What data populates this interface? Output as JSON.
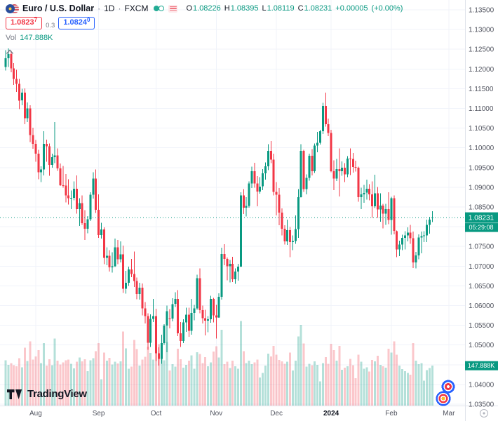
{
  "header": {
    "symbol": "Euro / U.S. Dollar",
    "sep": "·",
    "interval": "1D",
    "exchange": "FXCM",
    "ohlc": {
      "o_l": "O",
      "o": "1.08226",
      "h_l": "H",
      "h": "1.08395",
      "l_l": "L",
      "l": "1.08119",
      "c_l": "C",
      "c": "1.08231",
      "change": "+0.00005",
      "change_pct": "(+0.00%)"
    },
    "quote": {
      "sell": "1.0823",
      "sell_sup": "7",
      "spread": "0.3",
      "buy": "1.0824",
      "buy_sup": "0"
    },
    "vol_label": "Vol",
    "vol_value": "147.888K"
  },
  "price_label": {
    "value": "1.08231",
    "countdown": "05:29:08"
  },
  "volume_label": "147.888K",
  "footer": {
    "brand": "TradingView"
  },
  "colors": {
    "up": "#089981",
    "down": "#f23645",
    "vol_up": "rgba(8,153,129,0.30)",
    "vol_down": "rgba(242,54,69,0.28)",
    "accent_blue": "#2962ff",
    "grid": "#f0f3fa",
    "axis_text": "#50535e",
    "text": "#131722",
    "axis_border": "#e0e3eb"
  },
  "chart_data": {
    "type": "candlestick",
    "title": "Euro / U.S. Dollar · 1D · FXCM",
    "last_price": 1.08231,
    "ylim": [
      1.035,
      1.135
    ],
    "price_step": 0.005,
    "volume_axis_max": 320,
    "legend_position": "top-left",
    "grid": true,
    "x_axis_months": [
      {
        "label": "Aug",
        "index": 11,
        "year": false
      },
      {
        "label": "Sep",
        "index": 34,
        "year": false
      },
      {
        "label": "Oct",
        "index": 55,
        "year": false
      },
      {
        "label": "Nov",
        "index": 77,
        "year": false
      },
      {
        "label": "Dec",
        "index": 99,
        "year": false
      },
      {
        "label": "2024",
        "index": 119,
        "year": true
      },
      {
        "label": "Feb",
        "index": 141,
        "year": false
      },
      {
        "label": "Mar",
        "index": 162,
        "year": false
      }
    ],
    "candles_format": [
      "open",
      "high",
      "low",
      "close",
      "volume_K"
    ],
    "candles": [
      [
        1.1205,
        1.1248,
        1.1196,
        1.1227,
        168
      ],
      [
        1.1227,
        1.1252,
        1.1205,
        1.1238,
        151
      ],
      [
        1.1238,
        1.1246,
        1.1192,
        1.1201,
        157
      ],
      [
        1.1201,
        1.1215,
        1.116,
        1.1175,
        149
      ],
      [
        1.1175,
        1.1198,
        1.1142,
        1.1162,
        146
      ],
      [
        1.1162,
        1.1175,
        1.1098,
        1.112,
        176
      ],
      [
        1.112,
        1.115,
        1.1108,
        1.114,
        142
      ],
      [
        1.114,
        1.1151,
        1.106,
        1.1075,
        215
      ],
      [
        1.1075,
        1.1115,
        1.1065,
        1.11,
        165
      ],
      [
        1.11,
        1.1108,
        1.1015,
        1.1032,
        238
      ],
      [
        1.1032,
        1.1051,
        1.0998,
        1.101,
        170
      ],
      [
        1.101,
        1.102,
        1.0965,
        1.0985,
        182
      ],
      [
        1.0985,
        1.0995,
        1.092,
        1.0938,
        205
      ],
      [
        1.0938,
        1.0953,
        1.0913,
        1.0945,
        158
      ],
      [
        1.0945,
        1.1042,
        1.093,
        1.101,
        232
      ],
      [
        1.101,
        1.1021,
        1.0965,
        1.1004,
        148
      ],
      [
        1.1004,
        1.1011,
        1.0929,
        1.0957,
        172
      ],
      [
        1.0957,
        1.0985,
        1.095,
        1.0976,
        150
      ],
      [
        1.0976,
        1.1065,
        1.0961,
        1.0981,
        248
      ],
      [
        1.0981,
        1.0999,
        1.0942,
        1.0948,
        166
      ],
      [
        1.0948,
        1.096,
        1.0903,
        1.0905,
        152
      ],
      [
        1.0905,
        1.0954,
        1.0899,
        1.0904,
        160
      ],
      [
        1.0904,
        1.0934,
        1.0862,
        1.0879,
        168
      ],
      [
        1.0879,
        1.092,
        1.0856,
        1.0872,
        171
      ],
      [
        1.0872,
        1.0892,
        1.0845,
        1.0873,
        155
      ],
      [
        1.0873,
        1.0915,
        1.0867,
        1.0896,
        138
      ],
      [
        1.0896,
        1.093,
        1.0833,
        1.0845,
        162
      ],
      [
        1.0845,
        1.0872,
        1.0802,
        1.086,
        178
      ],
      [
        1.086,
        1.0879,
        1.0805,
        1.0809,
        164
      ],
      [
        1.0809,
        1.0842,
        1.0766,
        1.0795,
        172
      ],
      [
        1.0795,
        1.0827,
        1.0783,
        1.0819,
        128
      ],
      [
        1.0819,
        1.0887,
        1.0814,
        1.0881,
        168
      ],
      [
        1.0881,
        1.0938,
        1.0871,
        1.0922,
        176
      ],
      [
        1.0922,
        1.0945,
        1.0835,
        1.0843,
        202
      ],
      [
        1.0843,
        1.0882,
        1.0772,
        1.0779,
        231
      ],
      [
        1.0779,
        1.081,
        1.077,
        1.0793,
        98
      ],
      [
        1.0793,
        1.0798,
        1.0705,
        1.0721,
        196
      ],
      [
        1.0721,
        1.0748,
        1.0702,
        1.0726,
        166
      ],
      [
        1.0726,
        1.0741,
        1.0686,
        1.0697,
        177
      ],
      [
        1.0697,
        1.0735,
        1.0684,
        1.07,
        152
      ],
      [
        1.07,
        1.077,
        1.0698,
        1.0748,
        163
      ],
      [
        1.0748,
        1.0766,
        1.0705,
        1.0717,
        156
      ],
      [
        1.0717,
        1.0763,
        1.0709,
        1.073,
        164
      ],
      [
        1.073,
        1.0752,
        1.0632,
        1.0643,
        274
      ],
      [
        1.0643,
        1.0688,
        1.063,
        1.0658,
        212
      ],
      [
        1.0658,
        1.0699,
        1.065,
        1.0692,
        136
      ],
      [
        1.0692,
        1.0718,
        1.0672,
        1.068,
        144
      ],
      [
        1.068,
        1.0737,
        1.0647,
        1.0662,
        243
      ],
      [
        1.0662,
        1.0671,
        1.0616,
        1.0629,
        209
      ],
      [
        1.0629,
        1.0658,
        1.0615,
        1.0645,
        148
      ],
      [
        1.0645,
        1.0656,
        1.0575,
        1.0593,
        170
      ],
      [
        1.0593,
        1.0609,
        1.0555,
        1.0573,
        181
      ],
      [
        1.0573,
        1.058,
        1.0488,
        1.0506,
        218
      ],
      [
        1.0506,
        1.0578,
        1.0495,
        1.0566,
        195
      ],
      [
        1.0566,
        1.0617,
        1.0558,
        1.0573,
        171
      ],
      [
        1.0573,
        1.0592,
        1.0459,
        1.0479,
        208
      ],
      [
        1.0479,
        1.0494,
        1.0448,
        1.0465,
        227
      ],
      [
        1.0465,
        1.0526,
        1.0452,
        1.0505,
        193
      ],
      [
        1.0505,
        1.0553,
        1.05,
        1.0549,
        168
      ],
      [
        1.0549,
        1.06,
        1.0482,
        1.0586,
        236
      ],
      [
        1.0568,
        1.0591,
        1.0542,
        1.0567,
        130
      ],
      [
        1.0567,
        1.0619,
        1.056,
        1.0604,
        153
      ],
      [
        1.0604,
        1.0634,
        1.0596,
        1.0617,
        144
      ],
      [
        1.0617,
        1.0639,
        1.0523,
        1.053,
        211
      ],
      [
        1.053,
        1.0558,
        1.0495,
        1.051,
        172
      ],
      [
        1.051,
        1.0565,
        1.0505,
        1.0557,
        140
      ],
      [
        1.0557,
        1.0595,
        1.0533,
        1.0577,
        151
      ],
      [
        1.0577,
        1.0595,
        1.0521,
        1.0536,
        166
      ],
      [
        1.0536,
        1.0617,
        1.0526,
        1.0581,
        186
      ],
      [
        1.0581,
        1.0602,
        1.0563,
        1.0593,
        137
      ],
      [
        1.0593,
        1.0678,
        1.0589,
        1.0669,
        198
      ],
      [
        1.0669,
        1.0694,
        1.058,
        1.0588,
        191
      ],
      [
        1.0588,
        1.06,
        1.0555,
        1.0568,
        158
      ],
      [
        1.0568,
        1.0589,
        1.0524,
        1.0562,
        180
      ],
      [
        1.0562,
        1.0573,
        1.0532,
        1.0565,
        146
      ],
      [
        1.0565,
        1.0625,
        1.0556,
        1.0617,
        160
      ],
      [
        1.0617,
        1.062,
        1.0557,
        1.0575,
        200
      ],
      [
        1.0575,
        1.0602,
        1.0516,
        1.057,
        220
      ],
      [
        1.057,
        1.0631,
        1.0569,
        1.0622,
        178
      ],
      [
        1.0622,
        1.0747,
        1.0615,
        1.0731,
        281
      ],
      [
        1.0731,
        1.0756,
        1.0702,
        1.0718,
        153
      ],
      [
        1.0718,
        1.0722,
        1.0664,
        1.07,
        162
      ],
      [
        1.07,
        1.0716,
        1.0659,
        1.0706,
        139
      ],
      [
        1.0706,
        1.0724,
        1.066,
        1.0667,
        167
      ],
      [
        1.0667,
        1.0694,
        1.0655,
        1.0686,
        146
      ],
      [
        1.0686,
        1.0706,
        1.0663,
        1.0699,
        137
      ],
      [
        1.0699,
        1.0887,
        1.0698,
        1.0879,
        313
      ],
      [
        1.0879,
        1.0895,
        1.0832,
        1.0848,
        202
      ],
      [
        1.0848,
        1.0875,
        1.0826,
        1.0853,
        157
      ],
      [
        1.0853,
        1.0915,
        1.0848,
        1.091,
        167
      ],
      [
        1.091,
        1.0952,
        1.0898,
        1.0941,
        153
      ],
      [
        1.0941,
        1.0962,
        1.0899,
        1.091,
        160
      ],
      [
        1.091,
        1.0928,
        1.0852,
        1.0889,
        171
      ],
      [
        1.0889,
        1.0926,
        1.0884,
        1.0902,
        104
      ],
      [
        1.0902,
        1.0946,
        1.0893,
        1.0935,
        121
      ],
      [
        1.0935,
        1.0963,
        1.0919,
        1.0953,
        148
      ],
      [
        1.0953,
        1.1009,
        1.0943,
        1.0992,
        193
      ],
      [
        1.0992,
        1.1017,
        1.0961,
        1.097,
        182
      ],
      [
        1.097,
        1.0985,
        1.0879,
        1.0888,
        221
      ],
      [
        1.0888,
        1.0913,
        1.0829,
        1.0881,
        189
      ],
      [
        1.0881,
        1.0898,
        1.0804,
        1.0836,
        169
      ],
      [
        1.0836,
        1.0846,
        1.0778,
        1.0795,
        164
      ],
      [
        1.0795,
        1.0804,
        1.0755,
        1.0763,
        155
      ],
      [
        1.0763,
        1.0818,
        1.0754,
        1.0791,
        162
      ],
      [
        1.0791,
        1.0799,
        1.0723,
        1.0761,
        196
      ],
      [
        1.0761,
        1.0778,
        1.0741,
        1.0764,
        130
      ],
      [
        1.0764,
        1.0829,
        1.0757,
        1.0794,
        166
      ],
      [
        1.0794,
        1.0895,
        1.0772,
        1.0875,
        256
      ],
      [
        1.0875,
        1.1009,
        1.0874,
        1.0992,
        299
      ],
      [
        1.0992,
        1.0995,
        1.0888,
        1.0895,
        230
      ],
      [
        1.0895,
        1.0933,
        1.0882,
        1.0924,
        144
      ],
      [
        1.0924,
        1.0985,
        1.0917,
        1.098,
        155
      ],
      [
        1.098,
        1.0997,
        1.093,
        1.0941,
        149
      ],
      [
        1.0941,
        1.1011,
        1.0936,
        1.1006,
        164
      ],
      [
        1.1006,
        1.104,
        1.0989,
        1.1013,
        151
      ],
      [
        1.1013,
        1.1046,
        1.1008,
        1.1042,
        90
      ],
      [
        1.1042,
        1.1114,
        1.1035,
        1.1106,
        158
      ],
      [
        1.1106,
        1.114,
        1.1054,
        1.106,
        180
      ],
      [
        1.106,
        1.1074,
        1.103,
        1.1038,
        155
      ],
      [
        1.1038,
        1.1046,
        1.0938,
        1.0941,
        229
      ],
      [
        1.0941,
        1.0968,
        1.0893,
        1.0922,
        205
      ],
      [
        1.0922,
        1.0972,
        1.0916,
        1.0946,
        166
      ],
      [
        1.0946,
        1.0999,
        1.0877,
        1.0941,
        221
      ],
      [
        1.0941,
        1.0966,
        1.0929,
        1.095,
        133
      ],
      [
        1.095,
        1.0961,
        1.0913,
        1.0933,
        140
      ],
      [
        1.0933,
        1.0979,
        1.0926,
        1.0973,
        146
      ],
      [
        1.0973,
        1.0999,
        1.0931,
        1.0972,
        173
      ],
      [
        1.0972,
        1.0987,
        1.0937,
        1.0951,
        149
      ],
      [
        1.0951,
        1.0967,
        1.094,
        1.095,
        101
      ],
      [
        1.095,
        1.0952,
        1.0863,
        1.0875,
        189
      ],
      [
        1.0875,
        1.0899,
        1.0845,
        1.0882,
        162
      ],
      [
        1.0882,
        1.0906,
        1.0861,
        1.0886,
        137
      ],
      [
        1.0886,
        1.0919,
        1.0869,
        1.0896,
        142
      ],
      [
        1.0896,
        1.0908,
        1.0867,
        1.0882,
        126
      ],
      [
        1.0882,
        1.0915,
        1.0822,
        1.0852,
        169
      ],
      [
        1.0852,
        1.0932,
        1.0847,
        1.0885,
        164
      ],
      [
        1.0885,
        1.0901,
        1.0822,
        1.0844,
        185
      ],
      [
        1.0844,
        1.0885,
        1.0813,
        1.0854,
        151
      ],
      [
        1.0854,
        1.0858,
        1.0796,
        1.0833,
        146
      ],
      [
        1.0833,
        1.0858,
        1.0805,
        1.0845,
        140
      ],
      [
        1.0845,
        1.0887,
        1.0806,
        1.0817,
        211
      ],
      [
        1.0817,
        1.0876,
        1.078,
        1.0872,
        196
      ],
      [
        1.0872,
        1.0879,
        1.0781,
        1.0789,
        238
      ],
      [
        1.0789,
        1.079,
        1.0723,
        1.0742,
        189
      ],
      [
        1.0742,
        1.0765,
        1.0725,
        1.0755,
        148
      ],
      [
        1.0755,
        1.078,
        1.0741,
        1.0772,
        135
      ],
      [
        1.0772,
        1.0789,
        1.0742,
        1.0778,
        128
      ],
      [
        1.0778,
        1.0798,
        1.0763,
        1.0785,
        121
      ],
      [
        1.0785,
        1.0805,
        1.0757,
        1.0771,
        115
      ],
      [
        1.0771,
        1.0788,
        1.0695,
        1.0709,
        232
      ],
      [
        1.0709,
        1.0736,
        1.0694,
        1.0727,
        167
      ],
      [
        1.0727,
        1.0781,
        1.0717,
        1.0773,
        153
      ],
      [
        1.0773,
        1.0788,
        1.0733,
        1.0776,
        158
      ],
      [
        1.0776,
        1.0789,
        1.0761,
        1.0778,
        92
      ],
      [
        1.0778,
        1.0818,
        1.0761,
        1.0805,
        131
      ],
      [
        1.0805,
        1.0825,
        1.0782,
        1.0818,
        139
      ],
      [
        1.08226,
        1.08395,
        1.08119,
        1.08231,
        147.888
      ]
    ]
  }
}
